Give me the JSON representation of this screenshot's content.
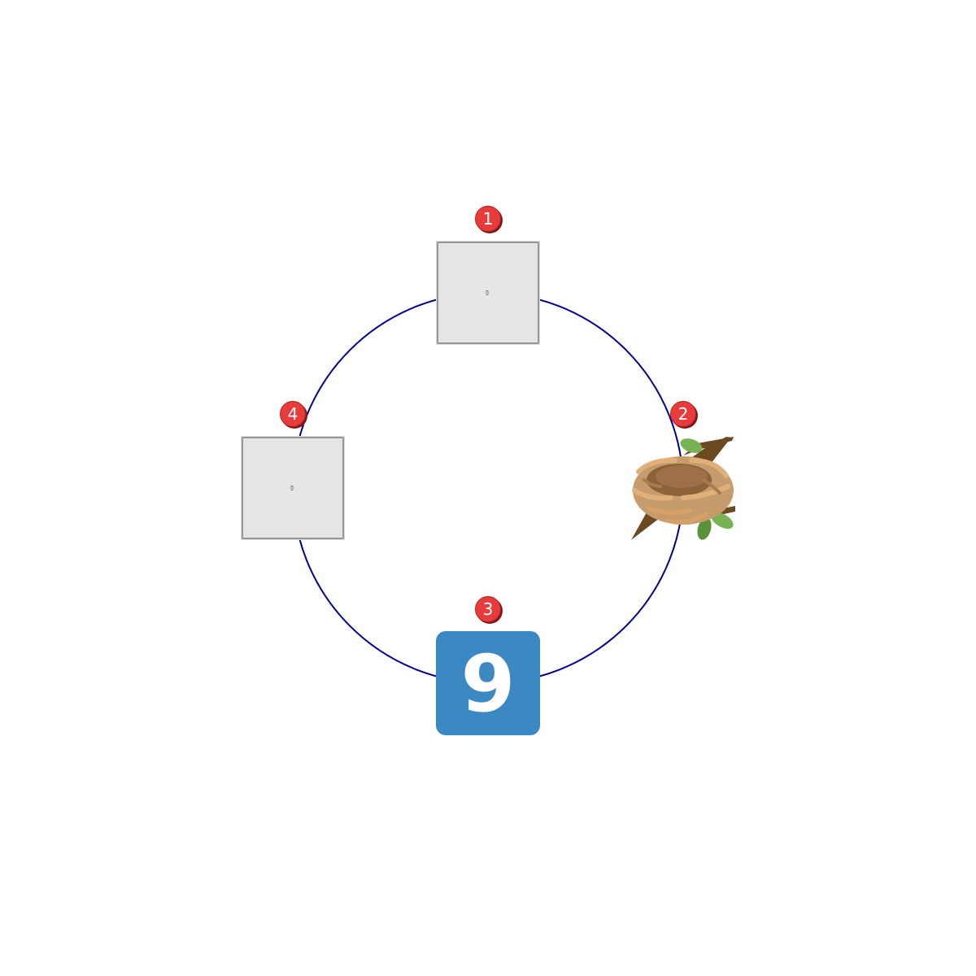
{
  "colors": {
    "ring": "#00008b",
    "badge_fill": "#e83b3b",
    "badge_shadow": "#7a1a1a",
    "placeholder_fill": "#e6e6e6",
    "placeholder_border": "#999999",
    "keycap_fill": "#3b88c3",
    "keycap_text": "#ffffff"
  },
  "nodes": [
    {
      "badge": "1",
      "kind": "placeholder",
      "glyph": "▯",
      "icon": "missing-glyph-box"
    },
    {
      "badge": "2",
      "kind": "emoji",
      "icon": "nest-icon"
    },
    {
      "badge": "3",
      "kind": "keycap",
      "glyph": "9",
      "icon": "keycap-digit-nine-icon"
    },
    {
      "badge": "4",
      "kind": "placeholder",
      "glyph": "▯",
      "icon": "missing-glyph-box"
    }
  ]
}
